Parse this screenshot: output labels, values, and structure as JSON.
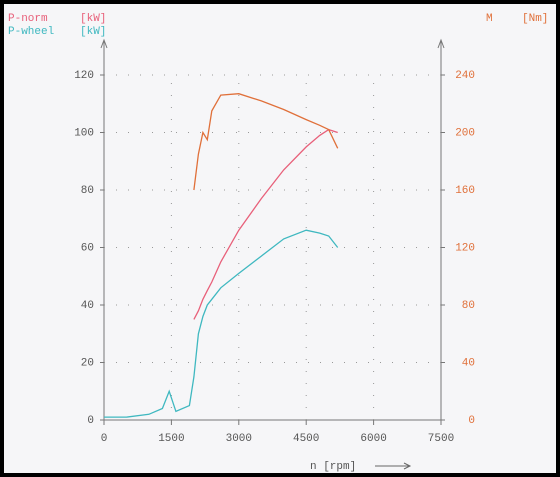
{
  "chart_data": {
    "type": "line",
    "x_label": "n [rpm]",
    "x": [
      0,
      500,
      1000,
      1300,
      1450,
      1600,
      1900,
      2000,
      2100,
      2200,
      2300,
      2400,
      2600,
      3000,
      3500,
      4000,
      4500,
      4800,
      5000,
      5200
    ],
    "series": [
      {
        "name": "P-norm",
        "unit": "[kW]",
        "color": "#e8607a",
        "values": [
          null,
          null,
          null,
          null,
          null,
          null,
          null,
          35,
          38,
          42,
          45,
          48,
          55,
          66,
          77,
          87,
          95,
          99,
          101,
          100
        ]
      },
      {
        "name": "P-wheel",
        "unit": "[kW]",
        "color": "#3fb8c0",
        "values": [
          1,
          1,
          2,
          4,
          10,
          3,
          5,
          15,
          30,
          36,
          40,
          42,
          46,
          51,
          57,
          63,
          66,
          65,
          64,
          60
        ]
      },
      {
        "name": "M",
        "unit": "[Nm]",
        "color": "#e0703a",
        "axis": "y2",
        "values": [
          null,
          null,
          null,
          null,
          null,
          null,
          null,
          160,
          185,
          200,
          195,
          215,
          226,
          227,
          222,
          216,
          209,
          205,
          202,
          189
        ]
      }
    ],
    "xlim": [
      0,
      7500
    ],
    "xticks": [
      0,
      1500,
      3000,
      4500,
      6000,
      7500
    ],
    "ylim": [
      0,
      120
    ],
    "yticks": [
      0,
      20,
      40,
      60,
      80,
      100,
      120
    ],
    "y2lim": [
      0,
      240
    ],
    "y2ticks": [
      0,
      40,
      80,
      120,
      160,
      200,
      240
    ],
    "grid": true
  }
}
